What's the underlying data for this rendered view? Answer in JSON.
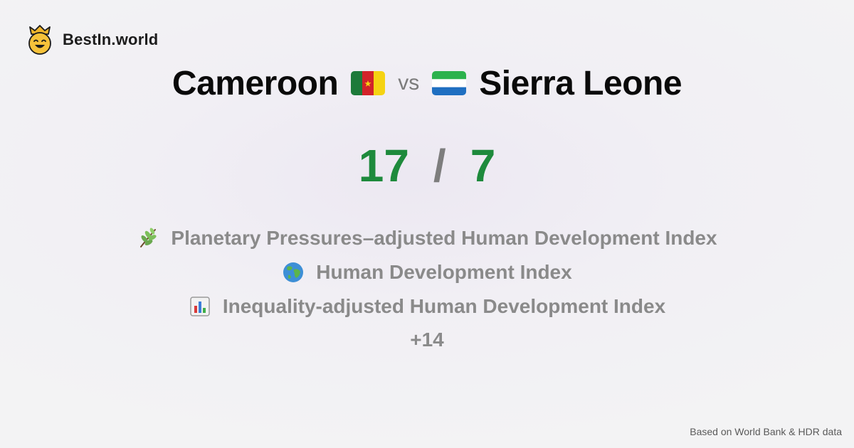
{
  "brand": {
    "name": "BestIn.world",
    "logo_icon": "crowned-smiley-icon"
  },
  "comparison": {
    "left_country": "Cameroon",
    "left_flag_icon": "cameroon-flag-icon",
    "vs_label": "vs",
    "right_country": "Sierra Leone",
    "right_flag_icon": "sierra-leone-flag-icon"
  },
  "score": {
    "left": "17",
    "separator": "/",
    "right": "7",
    "color": "#1e8a3c"
  },
  "categories": [
    {
      "label": "Planetary Pressures–adjusted Human Development Index",
      "icon": "herb-icon"
    },
    {
      "label": "Human Development Index",
      "icon": "globe-icon"
    },
    {
      "label": "Inequality-adjusted Human Development Index",
      "icon": "bar-chart-icon"
    }
  ],
  "more_label": "+14",
  "footer": {
    "source": "Based on World Bank & HDR data"
  }
}
